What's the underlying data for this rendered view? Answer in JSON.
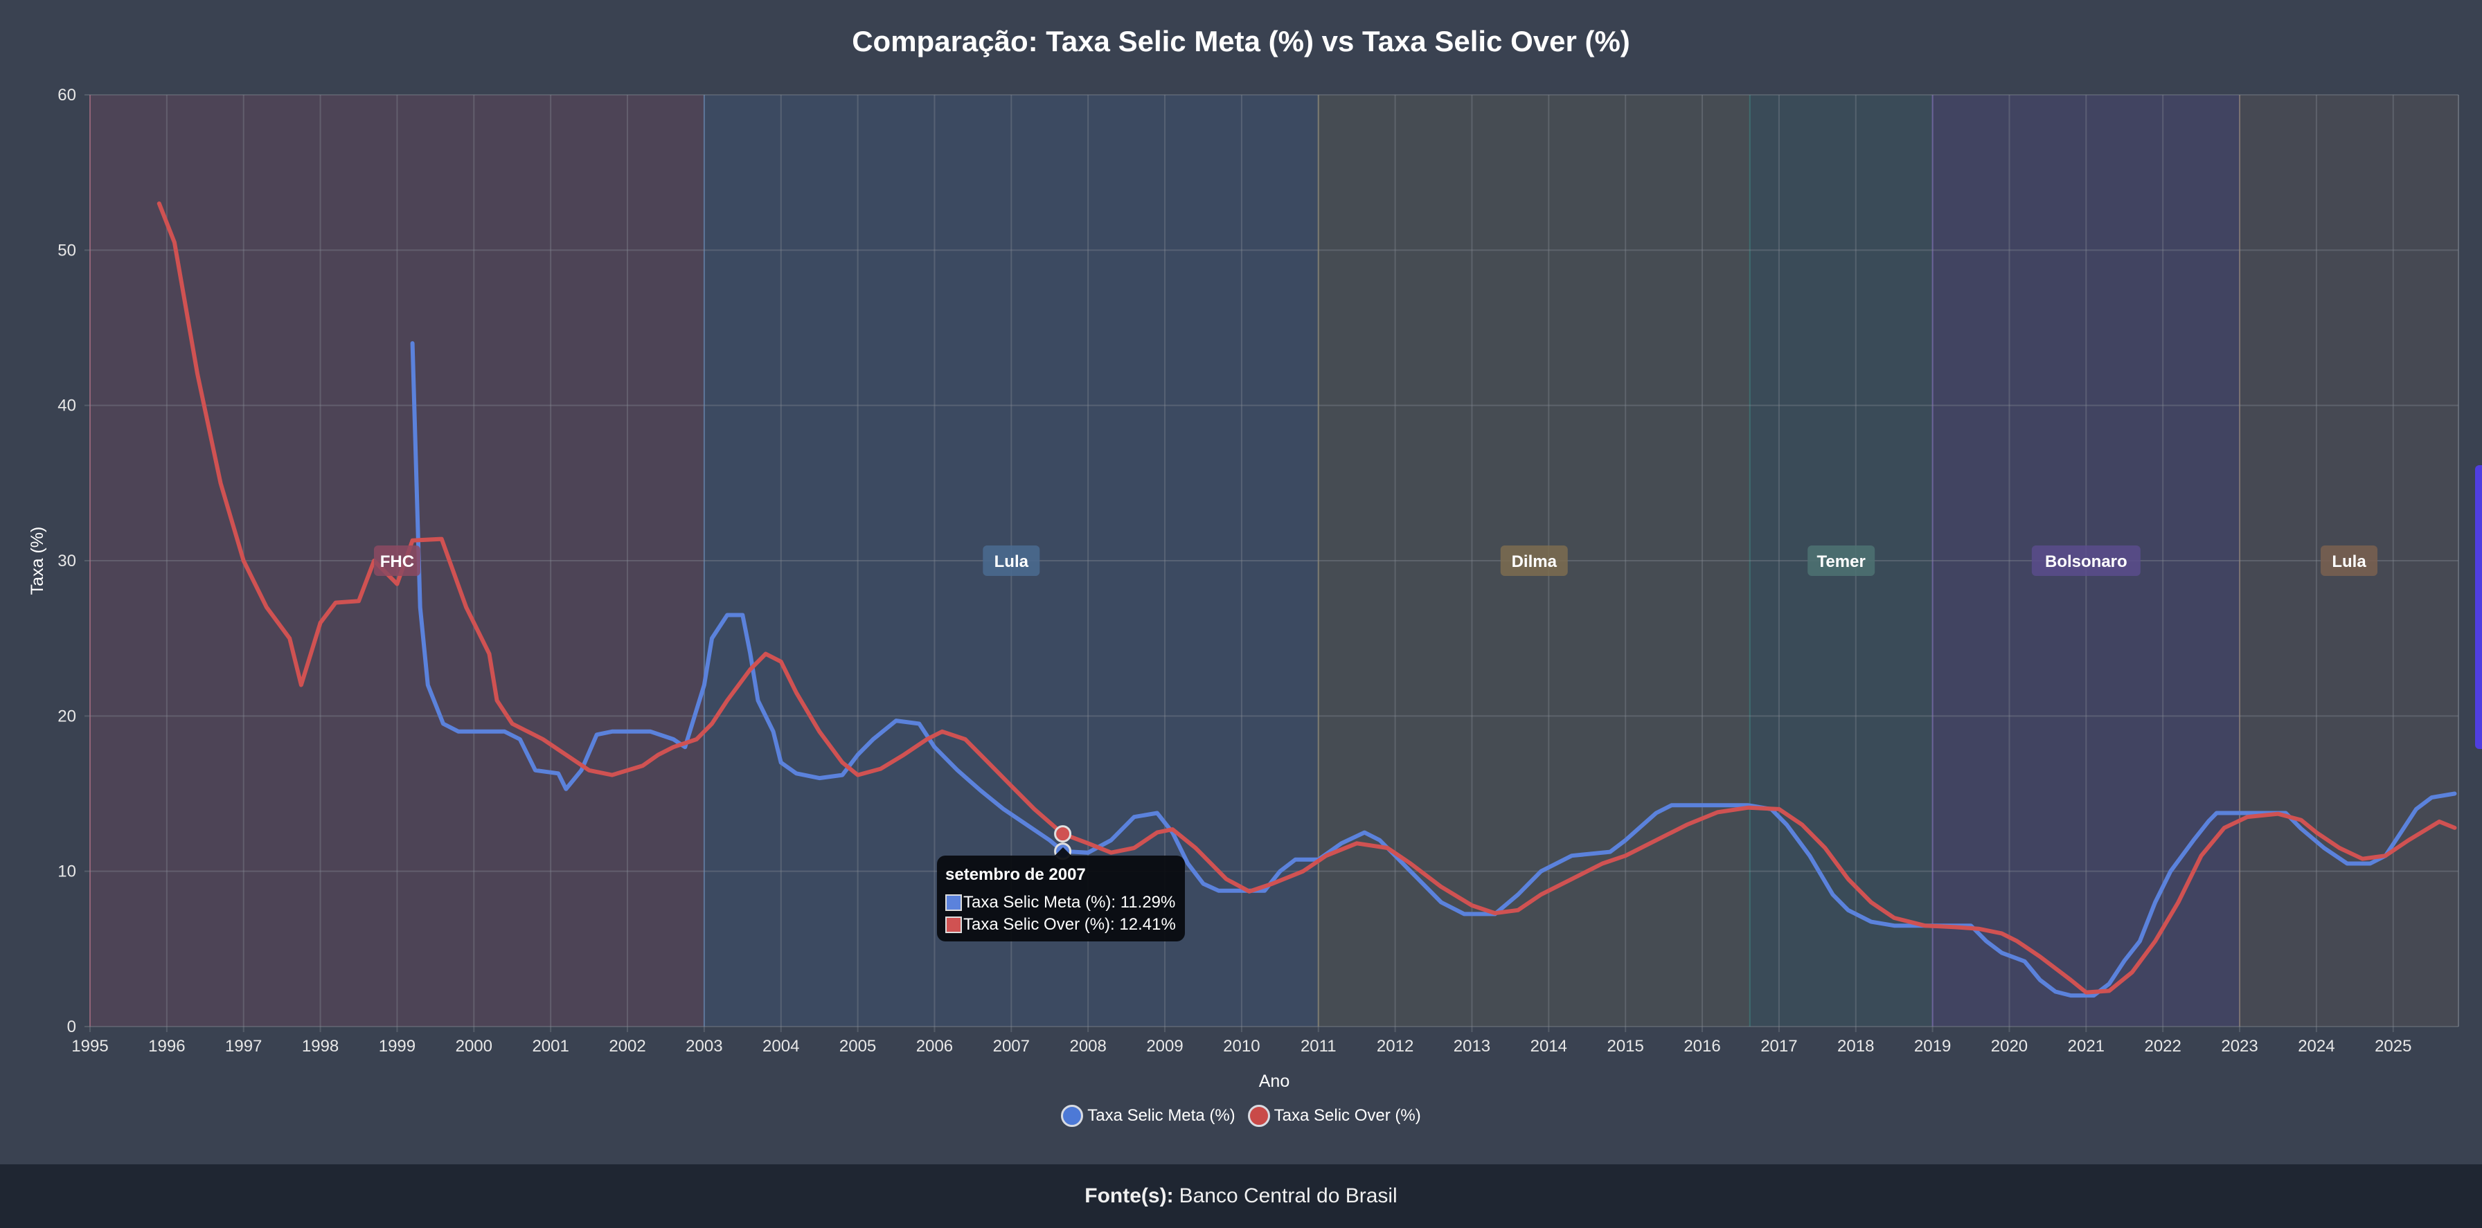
{
  "chart_data": {
    "type": "line",
    "title": "Comparação: Taxa Selic Meta (%) vs Taxa Selic Over (%)",
    "xlabel": "Ano",
    "ylabel": "Taxa (%)",
    "xlim": [
      1995,
      2025.85
    ],
    "ylim": [
      0,
      60
    ],
    "grid": true,
    "legend_position": "bottom",
    "x_ticks": [
      "1995",
      "1996",
      "1997",
      "1998",
      "1999",
      "2000",
      "2001",
      "2002",
      "2003",
      "2004",
      "2005",
      "2006",
      "2007",
      "2008",
      "2009",
      "2010",
      "2011",
      "2012",
      "2013",
      "2014",
      "2015",
      "2016",
      "2017",
      "2018",
      "2019",
      "2020",
      "2021",
      "2022",
      "2023",
      "2024",
      "2025"
    ],
    "y_ticks": [
      "0",
      "10",
      "20",
      "30",
      "40",
      "50",
      "60"
    ],
    "periods": [
      {
        "label": "FHC",
        "start": 1995,
        "end": 2003,
        "color": "#b4506e",
        "badge": "#8c4a62"
      },
      {
        "label": "Lula",
        "start": 2003,
        "end": 2011,
        "color": "#4a78b4",
        "badge": "#4a6b90"
      },
      {
        "label": "Dilma",
        "start": 2011,
        "end": 2016.62,
        "color": "#8a8060",
        "badge": "#7d6c50"
      },
      {
        "label": "Temer",
        "start": 2016.62,
        "end": 2019,
        "color": "#3f7a7a",
        "badge": "#4d7272"
      },
      {
        "label": "Bolsonaro",
        "start": 2019,
        "end": 2023,
        "color": "#6a50b4",
        "badge": "#5a4c8c"
      },
      {
        "label": "Lula",
        "start": 2023,
        "end": 2025.85,
        "color": "#8a7060",
        "badge": "#7a6050"
      }
    ],
    "series": [
      {
        "name": "Taxa Selic Meta (%)",
        "color": "#5b82dc",
        "x": [
          1999.2,
          1999.3,
          1999.4,
          1999.6,
          1999.8,
          2000.4,
          2000.6,
          2000.8,
          2001.1,
          2001.2,
          2001.4,
          2001.6,
          2001.8,
          2002.3,
          2002.6,
          2002.75,
          2003.0,
          2003.1,
          2003.3,
          2003.5,
          2003.6,
          2003.7,
          2003.9,
          2004.0,
          2004.2,
          2004.5,
          2004.8,
          2005.0,
          2005.2,
          2005.5,
          2005.8,
          2006.0,
          2006.3,
          2006.6,
          2006.9,
          2007.2,
          2007.5,
          2007.67,
          2008.0,
          2008.3,
          2008.6,
          2008.9,
          2009.1,
          2009.3,
          2009.5,
          2009.7,
          2010.3,
          2010.5,
          2010.7,
          2011.0,
          2011.3,
          2011.6,
          2011.8,
          2012.0,
          2012.3,
          2012.6,
          2012.9,
          2013.3,
          2013.6,
          2013.9,
          2014.3,
          2014.8,
          2015.0,
          2015.4,
          2015.6,
          2016.6,
          2016.9,
          2017.1,
          2017.4,
          2017.7,
          2017.9,
          2018.2,
          2018.5,
          2019.5,
          2019.7,
          2019.9,
          2020.2,
          2020.4,
          2020.6,
          2020.8,
          2021.1,
          2021.3,
          2021.5,
          2021.7,
          2021.9,
          2022.1,
          2022.4,
          2022.6,
          2022.7,
          2023.6,
          2023.8,
          2024.1,
          2024.4,
          2024.7,
          2024.9,
          2025.1,
          2025.3,
          2025.5,
          2025.8
        ],
        "values": [
          44,
          27,
          22,
          19.5,
          19,
          19,
          18.5,
          16.5,
          16.3,
          15.3,
          16.5,
          18.8,
          19,
          19,
          18.5,
          18,
          22,
          25,
          26.5,
          26.5,
          24,
          21,
          19,
          17,
          16.3,
          16,
          16.2,
          17.5,
          18.5,
          19.7,
          19.5,
          18,
          16.5,
          15.2,
          14,
          13,
          12,
          11.29,
          11.2,
          12,
          13.5,
          13.75,
          12.5,
          10.5,
          9.2,
          8.75,
          8.75,
          10,
          10.75,
          10.75,
          11.8,
          12.5,
          12,
          11,
          9.5,
          8,
          7.25,
          7.25,
          8.5,
          10,
          11,
          11.25,
          12,
          13.75,
          14.25,
          14.25,
          14,
          13,
          11,
          8.5,
          7.5,
          6.75,
          6.5,
          6.5,
          5.5,
          4.75,
          4.2,
          3,
          2.25,
          2,
          2,
          2.75,
          4.25,
          5.5,
          8,
          10,
          12,
          13.25,
          13.75,
          13.75,
          12.75,
          11.5,
          10.5,
          10.5,
          11,
          12.5,
          14,
          14.75,
          15
        ]
      },
      {
        "name": "Taxa Selic Over (%)",
        "color": "#d05252",
        "x": [
          1995.9,
          1996.1,
          1996.4,
          1996.7,
          1997.0,
          1997.3,
          1997.6,
          1997.75,
          1998.0,
          1998.2,
          1998.5,
          1998.7,
          1999.0,
          1999.2,
          1999.58,
          1999.9,
          2000.2,
          2000.3,
          2000.5,
          2000.9,
          2001.2,
          2001.5,
          2001.8,
          2002.2,
          2002.4,
          2002.6,
          2002.9,
          2003.1,
          2003.3,
          2003.6,
          2003.8,
          2004.0,
          2004.2,
          2004.5,
          2004.8,
          2005.0,
          2005.3,
          2005.6,
          2005.9,
          2006.1,
          2006.4,
          2006.7,
          2007.0,
          2007.3,
          2007.67,
          2008.0,
          2008.3,
          2008.6,
          2008.9,
          2009.1,
          2009.4,
          2009.8,
          2010.1,
          2010.4,
          2010.8,
          2011.1,
          2011.5,
          2011.9,
          2012.2,
          2012.6,
          2013.0,
          2013.3,
          2013.6,
          2013.9,
          2014.3,
          2014.7,
          2015.0,
          2015.4,
          2015.8,
          2016.2,
          2016.6,
          2017.0,
          2017.3,
          2017.6,
          2017.9,
          2018.2,
          2018.5,
          2018.9,
          2019.3,
          2019.6,
          2019.9,
          2020.1,
          2020.4,
          2020.8,
          2021.0,
          2021.3,
          2021.6,
          2021.9,
          2022.2,
          2022.5,
          2022.8,
          2023.1,
          2023.5,
          2023.8,
          2024.0,
          2024.3,
          2024.6,
          2024.9,
          2025.2,
          2025.6,
          2025.8
        ],
        "values": [
          53,
          50.5,
          42,
          35,
          30,
          27,
          25,
          22,
          26,
          27.3,
          27.4,
          30,
          28.5,
          31.3,
          31.4,
          27,
          24,
          21,
          19.5,
          18.5,
          17.5,
          16.5,
          16.2,
          16.8,
          17.5,
          18,
          18.5,
          19.5,
          21,
          23,
          24,
          23.5,
          21.5,
          19,
          17,
          16.2,
          16.6,
          17.5,
          18.5,
          19,
          18.5,
          17,
          15.5,
          14,
          12.41,
          11.8,
          11.2,
          11.5,
          12.5,
          12.7,
          11.5,
          9.5,
          8.7,
          9.2,
          10,
          11,
          11.8,
          11.5,
          10.5,
          9,
          7.8,
          7.3,
          7.5,
          8.5,
          9.5,
          10.5,
          11,
          12,
          13,
          13.8,
          14.1,
          14,
          13,
          11.5,
          9.5,
          8,
          7,
          6.5,
          6.4,
          6.3,
          6,
          5.5,
          4.5,
          3,
          2.2,
          2.3,
          3.5,
          5.5,
          8,
          11,
          12.8,
          13.5,
          13.7,
          13.3,
          12.5,
          11.5,
          10.8,
          11,
          12,
          13.2,
          12.8
        ]
      }
    ],
    "tooltip": {
      "title": "setembro de 2007",
      "x": 2007.67,
      "lines": [
        "Taxa Selic Meta (%): 11.29%",
        "Taxa Selic Over (%): 12.41%"
      ]
    }
  },
  "legend": [
    "Taxa Selic Meta (%)",
    "Taxa Selic Over (%)"
  ],
  "footer": {
    "label": "Fonte(s):",
    "value": "Banco Central do Brasil"
  }
}
